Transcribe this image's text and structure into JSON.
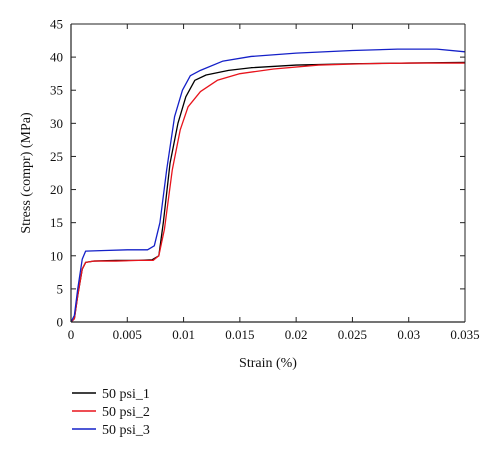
{
  "chart_data": {
    "type": "line",
    "title": "",
    "xlabel": "Strain (%)",
    "ylabel": "Stress (compr) (MPa)",
    "xlim": [
      0,
      0.035
    ],
    "ylim": [
      0,
      45
    ],
    "xticks": [
      0,
      0.005,
      0.01,
      0.015,
      0.02,
      0.025,
      0.03,
      0.035
    ],
    "yticks": [
      0,
      5,
      10,
      15,
      20,
      25,
      30,
      35,
      40,
      45
    ],
    "xtick_labels": [
      "0",
      "0.005",
      "0.01",
      "0.015",
      "0.02",
      "0.025",
      "0.03",
      "0.035"
    ],
    "ytick_labels": [
      "0",
      "5",
      "10",
      "15",
      "20",
      "25",
      "30",
      "35",
      "40",
      "45"
    ],
    "grid": false,
    "legend_position": "below-left",
    "series": [
      {
        "name": "50 psi_1",
        "color": "#000000",
        "x": [
          0,
          0.0003,
          0.0006,
          0.001,
          0.0013,
          0.002,
          0.004,
          0.006,
          0.0072,
          0.0078,
          0.0082,
          0.0088,
          0.0095,
          0.0102,
          0.011,
          0.012,
          0.014,
          0.016,
          0.02,
          0.025,
          0.03,
          0.035
        ],
        "y": [
          0,
          0.5,
          4,
          8,
          9,
          9.2,
          9.3,
          9.3,
          9.4,
          10,
          15,
          24,
          30,
          34,
          36.5,
          37.3,
          38,
          38.4,
          38.8,
          39,
          39.1,
          39.2
        ]
      },
      {
        "name": "50 psi_2",
        "color": "#e8141c",
        "x": [
          0,
          0.0003,
          0.0006,
          0.001,
          0.0013,
          0.002,
          0.004,
          0.006,
          0.0073,
          0.0078,
          0.0083,
          0.009,
          0.0097,
          0.0104,
          0.0115,
          0.013,
          0.015,
          0.018,
          0.022,
          0.026,
          0.03,
          0.035
        ],
        "y": [
          0,
          0.5,
          4,
          8,
          9,
          9.2,
          9.2,
          9.3,
          9.3,
          10,
          14,
          23,
          29,
          32.5,
          34.8,
          36.5,
          37.5,
          38.2,
          38.8,
          39,
          39.1,
          39.1
        ]
      },
      {
        "name": "50 psi_3",
        "color": "#1420c8",
        "x": [
          0,
          0.0003,
          0.0006,
          0.001,
          0.0013,
          0.003,
          0.005,
          0.0068,
          0.0074,
          0.0079,
          0.0085,
          0.0092,
          0.0099,
          0.0106,
          0.0115,
          0.0135,
          0.016,
          0.02,
          0.025,
          0.029,
          0.0325,
          0.035
        ],
        "y": [
          0,
          1,
          5,
          9.5,
          10.7,
          10.8,
          10.9,
          10.9,
          11.5,
          15,
          23,
          31,
          35,
          37.2,
          38,
          39.4,
          40.1,
          40.6,
          41,
          41.2,
          41.2,
          40.8
        ]
      }
    ]
  }
}
